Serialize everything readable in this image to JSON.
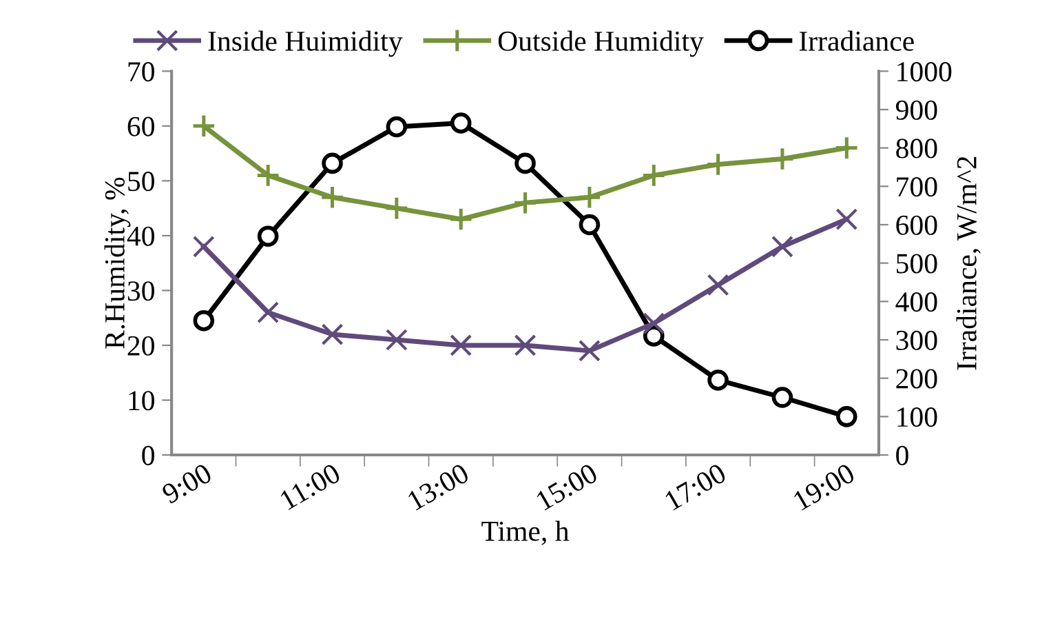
{
  "chart_data": {
    "type": "line",
    "xlabel": "Time, h",
    "ylabel": "R.Humidity, %",
    "y2label": "Irradiance, W/m^2",
    "categories": [
      "9:00",
      null,
      "11:00",
      null,
      "13:00",
      null,
      "15:00",
      null,
      "17:00",
      null,
      "19:00"
    ],
    "series": [
      {
        "name": "Inside Huimidity",
        "color": "#604a7b",
        "marker": "cross",
        "values": [
          38,
          26,
          22,
          21,
          20,
          20,
          19,
          24,
          31,
          38,
          43
        ]
      },
      {
        "name": "Outside Humidity",
        "color": "#77933c",
        "marker": "plus",
        "values": [
          60,
          51,
          47,
          45,
          43,
          46,
          47,
          51,
          53,
          54,
          56
        ]
      },
      {
        "name": "Irradiance",
        "color": "#000000",
        "marker": "circle",
        "axis": "y2",
        "values": [
          350,
          570,
          760,
          855,
          865,
          760,
          600,
          310,
          195,
          150,
          100
        ]
      }
    ],
    "ylim": [
      0,
      70
    ],
    "yticks": [
      0,
      10,
      20,
      30,
      40,
      50,
      60,
      70
    ],
    "y2lim": [
      0,
      1000
    ],
    "y2ticks": [
      0,
      100,
      200,
      300,
      400,
      500,
      600,
      700,
      800,
      900,
      1000
    ],
    "grid": false,
    "legend": "top"
  }
}
